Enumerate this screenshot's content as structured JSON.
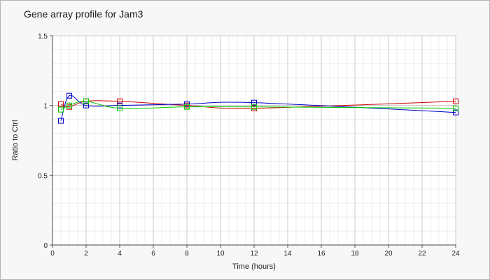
{
  "chart_data": {
    "type": "line",
    "title": "Gene array profile for Jam3",
    "xlabel": "Time (hours)",
    "ylabel": "Ratio to Ctrl",
    "xlim": [
      0,
      24
    ],
    "ylim": [
      0,
      1.5
    ],
    "xticks": [
      "0",
      "2",
      "4",
      "6",
      "8",
      "10",
      "12",
      "14",
      "16",
      "18",
      "20",
      "22",
      "24"
    ],
    "yticks": [
      "0",
      "0.5",
      "1",
      "1.5"
    ],
    "grid": true,
    "x": [
      0.5,
      1,
      2,
      4,
      8,
      12,
      24
    ],
    "series": [
      {
        "color": "#cc0000",
        "values": [
          1.01,
          0.99,
          1.03,
          1.03,
          1.0,
          0.98,
          1.03
        ]
      },
      {
        "color": "#0000cc",
        "values": [
          0.89,
          1.07,
          1.0,
          1.0,
          1.01,
          1.02,
          0.95
        ]
      },
      {
        "color": "#00cc00",
        "values": [
          0.97,
          1.0,
          1.03,
          0.98,
          0.99,
          0.99,
          0.98
        ]
      }
    ]
  }
}
